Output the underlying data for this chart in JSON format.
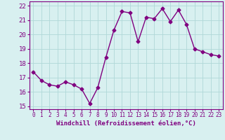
{
  "x": [
    0,
    1,
    2,
    3,
    4,
    5,
    6,
    7,
    8,
    9,
    10,
    11,
    12,
    13,
    14,
    15,
    16,
    17,
    18,
    19,
    20,
    21,
    22,
    23
  ],
  "y": [
    17.4,
    16.8,
    16.5,
    16.4,
    16.7,
    16.5,
    16.2,
    15.2,
    16.3,
    18.4,
    20.3,
    21.6,
    21.5,
    19.5,
    21.2,
    21.1,
    21.8,
    20.9,
    21.7,
    20.7,
    19.0,
    18.8,
    18.6,
    18.5
  ],
  "line_color": "#800080",
  "marker": "D",
  "marker_size": 2.5,
  "bg_color": "#d8f0f0",
  "grid_color": "#b0d8d8",
  "xlabel": "Windchill (Refroidissement éolien,°C)",
  "xlabel_color": "#800080",
  "tick_color": "#800080",
  "spine_color": "#800080",
  "ylim": [
    14.8,
    22.3
  ],
  "xlim": [
    -0.5,
    23.5
  ],
  "yticks": [
    15,
    16,
    17,
    18,
    19,
    20,
    21,
    22
  ],
  "xticks": [
    0,
    1,
    2,
    3,
    4,
    5,
    6,
    7,
    8,
    9,
    10,
    11,
    12,
    13,
    14,
    15,
    16,
    17,
    18,
    19,
    20,
    21,
    22,
    23
  ],
  "xlabel_fontsize": 6.5,
  "ytick_fontsize": 6.5,
  "xtick_fontsize": 5.5
}
